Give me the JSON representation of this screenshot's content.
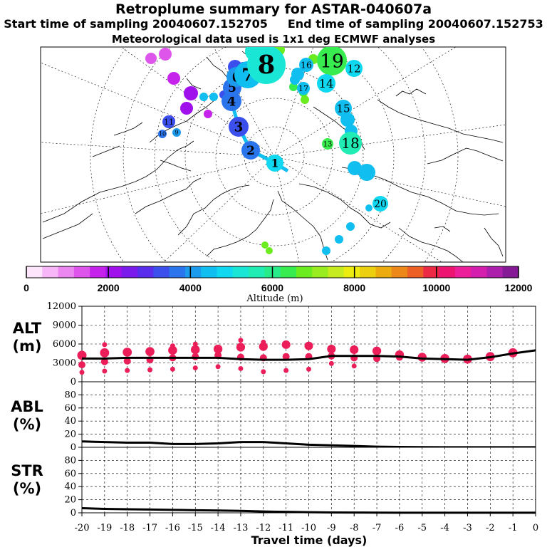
{
  "header": {
    "title": "Retroplume summary for ASTAR-040607a",
    "start_label": "Start time of sampling 20040607.152705",
    "end_label": "End time of sampling 20040607.152753",
    "met_label": "Meteorological data used is 1x1 deg ECMWF analyses"
  },
  "colorbar": {
    "label": "Altitude (m)",
    "tick_labels": [
      "0",
      "2000",
      "4000",
      "6000",
      "8000",
      "10000",
      "12000"
    ],
    "ticks": [
      0,
      2000,
      4000,
      6000,
      8000,
      10000,
      12000
    ],
    "range": [
      0,
      12000
    ],
    "colors": [
      "#fde6fc",
      "#f6b6f7",
      "#ec86f0",
      "#de55ec",
      "#c522ec",
      "#a010ec",
      "#7a1bec",
      "#5a2cec",
      "#3a4fec",
      "#2a74ec",
      "#1c9aec",
      "#10bef0",
      "#10d8f0",
      "#1ae6d6",
      "#20ecb4",
      "#28ec8a",
      "#38ec50",
      "#6aec20",
      "#98ec20",
      "#c6ec20",
      "#ecec10",
      "#ecd010",
      "#ecac10",
      "#ec8818",
      "#ec6026",
      "#ec2a46",
      "#ec1470",
      "#ec1e9a",
      "#d41eae",
      "#ac1eac",
      "#861a96"
    ]
  },
  "map": {
    "centroids": [
      {
        "label": "1",
        "day": 1,
        "altitude_m": 4800
      },
      {
        "label": "2",
        "day": 2,
        "altitude_m": 3600
      },
      {
        "label": "3",
        "day": 3,
        "altitude_m": 3300
      },
      {
        "label": "4",
        "day": 4,
        "altitude_m": 3700
      },
      {
        "label": "5",
        "day": 5,
        "altitude_m": 3600
      },
      {
        "label": "6",
        "day": 6,
        "altitude_m": 4100
      },
      {
        "label": "7",
        "day": 7,
        "altitude_m": 4300
      },
      {
        "label": "8",
        "day": 8,
        "altitude_m": 5300
      }
    ],
    "clusters": [
      {
        "label": "19",
        "altitude_m": 6200
      },
      {
        "label": "18",
        "altitude_m": 5600
      },
      {
        "label": "14",
        "altitude_m": 4800
      },
      {
        "label": "12",
        "altitude_m": 5000
      },
      {
        "label": "15",
        "altitude_m": 4600
      },
      {
        "label": "16",
        "altitude_m": 4300
      },
      {
        "label": "17",
        "altitude_m": 4300
      },
      {
        "label": "20",
        "altitude_m": 4900
      },
      {
        "label": "13",
        "altitude_m": 6400
      },
      {
        "label": "11",
        "altitude_m": 3400
      },
      {
        "label": "10",
        "altitude_m": 3800
      },
      {
        "label": "9",
        "altitude_m": 3900
      }
    ]
  },
  "chart_data": [
    {
      "type": "scatter",
      "panel": "ALT",
      "ylabel": "ALT\n(m)",
      "ylabel_line1": "ALT",
      "ylabel_line2": "(m)",
      "ylim": [
        0,
        12000
      ],
      "yticks": [
        0,
        3000,
        6000,
        9000,
        12000
      ],
      "ytick_labels": [
        "0",
        "3000",
        "6000",
        "9000",
        "12000"
      ],
      "xlim": [
        -20,
        0
      ],
      "mean_line": {
        "x": [
          -20,
          -19,
          -18,
          -17,
          -16,
          -15,
          -14,
          -13,
          -12,
          -11,
          -10,
          -9,
          -8,
          -7,
          -6,
          -5,
          -4,
          -3,
          -2,
          -1,
          0
        ],
        "y": [
          3700,
          3700,
          3800,
          3800,
          3800,
          3800,
          3800,
          3600,
          3500,
          3500,
          3600,
          4100,
          4100,
          4100,
          4000,
          3700,
          3600,
          3500,
          3900,
          4500,
          5000
        ]
      },
      "clusters": [
        {
          "x": -20,
          "y": [
            4200,
            2700,
            1500
          ]
        },
        {
          "x": -19,
          "y": [
            4600,
            3200,
            1700,
            5900
          ]
        },
        {
          "x": -18,
          "y": [
            4700,
            3300,
            1800
          ]
        },
        {
          "x": -17,
          "y": [
            4800,
            3500,
            1900
          ]
        },
        {
          "x": -16,
          "y": [
            5000,
            3800,
            2000,
            5700
          ]
        },
        {
          "x": -15,
          "y": [
            5100,
            4000,
            2200,
            6000
          ]
        },
        {
          "x": -14,
          "y": [
            5200,
            4200,
            2400
          ]
        },
        {
          "x": -13,
          "y": [
            5500,
            3900,
            2100,
            6600
          ]
        },
        {
          "x": -12,
          "y": [
            5600,
            3800,
            1600,
            6300
          ]
        },
        {
          "x": -11,
          "y": [
            5900,
            4000,
            1800
          ]
        },
        {
          "x": -10,
          "y": [
            5700,
            4000,
            2000
          ]
        },
        {
          "x": -9,
          "y": [
            5200,
            4100,
            2900
          ]
        },
        {
          "x": -8,
          "y": [
            5100,
            3800,
            2500
          ]
        },
        {
          "x": -7,
          "y": [
            4900,
            3700
          ]
        },
        {
          "x": -6,
          "y": [
            4300,
            3900
          ]
        },
        {
          "x": -5,
          "y": [
            3900
          ]
        },
        {
          "x": -4,
          "y": [
            3700
          ]
        },
        {
          "x": -3,
          "y": [
            3600
          ]
        },
        {
          "x": -2,
          "y": [
            4000
          ]
        },
        {
          "x": -1,
          "y": [
            4600
          ]
        }
      ]
    },
    {
      "type": "line",
      "panel": "ABL",
      "ylabel": "ABL\n(%)",
      "ylabel_line1": "ABL",
      "ylabel_line2": "(%)",
      "ylim": [
        0,
        100
      ],
      "yticks": [
        0,
        20,
        40,
        60,
        80
      ],
      "ytick_labels": [
        "0",
        "20",
        "40",
        "60",
        "80"
      ],
      "x": [
        -20,
        -19,
        -18,
        -17,
        -16,
        -15,
        -14,
        -13,
        -12,
        -11,
        -10,
        -9,
        -8,
        -7,
        -6,
        -5,
        -4,
        -3,
        -2,
        -1,
        0
      ],
      "y": [
        9,
        8,
        7,
        7,
        5,
        5,
        6,
        8,
        8,
        6,
        4,
        3,
        2,
        1,
        0.5,
        0.3,
        0.2,
        0.2,
        0.2,
        0.2,
        0.2
      ]
    },
    {
      "type": "line",
      "panel": "STR",
      "ylabel": "STR\n(%)",
      "ylabel_line1": "STR",
      "ylabel_line2": "(%)",
      "ylim": [
        0,
        100
      ],
      "yticks": [
        0,
        20,
        40,
        60,
        80
      ],
      "ytick_labels": [
        "0",
        "20",
        "40",
        "60",
        "80"
      ],
      "x": [
        -20,
        -19,
        -18,
        -17,
        -16,
        -15,
        -14,
        -13,
        -12,
        -11,
        -10,
        -9,
        -8,
        -7,
        -6,
        -5,
        -4,
        -3,
        -2,
        -1,
        0
      ],
      "y": [
        7,
        6,
        5.5,
        5,
        4.5,
        4,
        3.5,
        3,
        2,
        1.5,
        1,
        0.5,
        0.4,
        0.3,
        0.2,
        0.2,
        0.2,
        0.2,
        0.2,
        0.2,
        0.2
      ]
    }
  ],
  "xaxis": {
    "label": "Travel time (days)",
    "ticks": [
      -20,
      -19,
      -18,
      -17,
      -16,
      -15,
      -14,
      -13,
      -12,
      -11,
      -10,
      -9,
      -8,
      -7,
      -6,
      -5,
      -4,
      -3,
      -2,
      -1,
      0
    ],
    "tick_labels": [
      "-20",
      "-19",
      "-18",
      "-17",
      "-16",
      "-15",
      "-14",
      "-13",
      "-12",
      "-11",
      "-10",
      "-9",
      "-8",
      "-7",
      "-6",
      "-5",
      "-4",
      "-3",
      "-2",
      "-1",
      "0"
    ]
  }
}
